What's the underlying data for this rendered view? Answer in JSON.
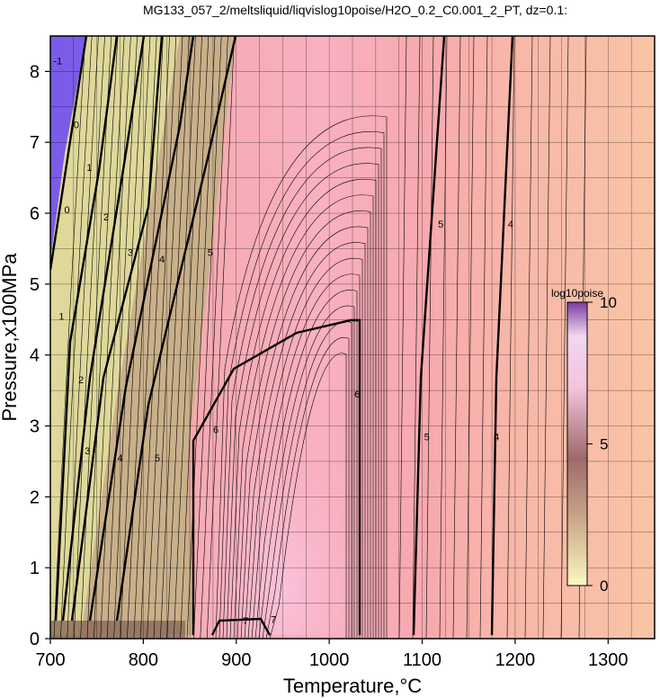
{
  "chart_data": {
    "type": "heatmap",
    "title": "MG133_057_2/meltsliquid/liqvislog10poise/H2O_0.2_C0.001_2_PT, dz=0.1:",
    "xlabel": "Temperature,°C",
    "ylabel": "Pressure,x100MPa",
    "xlim": [
      700,
      1350
    ],
    "ylim": [
      0,
      8.5
    ],
    "x_ticks": [
      "700",
      "800",
      "900",
      "1000",
      "1100",
      "1200",
      "1300"
    ],
    "y_ticks": [
      "0",
      "1",
      "2",
      "3",
      "4",
      "5",
      "6",
      "7",
      "8"
    ],
    "grid": true,
    "colorbar": {
      "title": "log10poise",
      "range": [
        0,
        10
      ],
      "ticks": [
        "0",
        "5",
        "10"
      ],
      "colors": [
        "#fbf8c0",
        "#9e7a6a",
        "#f4c4dc",
        "#7a3ea0"
      ],
      "position": "right"
    },
    "colors": {
      "low": "#7b5ce8",
      "yellow": "#e6e89a",
      "tan": "#bdaa84",
      "pink": "#f5a4ac",
      "peak": "#fbbad2",
      "salmon": "#f9c3a4"
    },
    "contour_labels": [
      {
        "text": "-1",
        "x": 708,
        "y": 8.1
      },
      {
        "text": "0",
        "x": 728,
        "y": 7.2
      },
      {
        "text": "0",
        "x": 718,
        "y": 6.0
      },
      {
        "text": "1",
        "x": 742,
        "y": 6.6
      },
      {
        "text": "1",
        "x": 712,
        "y": 4.5
      },
      {
        "text": "2",
        "x": 760,
        "y": 5.9
      },
      {
        "text": "2",
        "x": 733,
        "y": 3.6
      },
      {
        "text": "3",
        "x": 786,
        "y": 5.4
      },
      {
        "text": "3",
        "x": 740,
        "y": 2.6
      },
      {
        "text": "4",
        "x": 820,
        "y": 5.3
      },
      {
        "text": "4",
        "x": 775,
        "y": 2.5
      },
      {
        "text": "5",
        "x": 872,
        "y": 5.4
      },
      {
        "text": "5",
        "x": 815,
        "y": 2.5
      },
      {
        "text": "6",
        "x": 878,
        "y": 2.9
      },
      {
        "text": "6",
        "x": 1030,
        "y": 3.4
      },
      {
        "text": "7",
        "x": 910,
        "y": 0.2
      },
      {
        "text": "7",
        "x": 940,
        "y": 0.22
      },
      {
        "text": "5",
        "x": 1120,
        "y": 5.8
      },
      {
        "text": "5",
        "x": 1105,
        "y": 2.8
      },
      {
        "text": "4",
        "x": 1195,
        "y": 5.8
      },
      {
        "text": "4",
        "x": 1180,
        "y": 2.8
      }
    ]
  }
}
